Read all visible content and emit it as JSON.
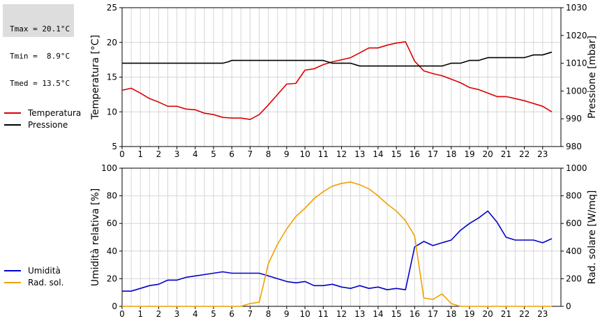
{
  "stats": {
    "tmax": "Tmax = 20.1°C",
    "tmin": "Tmin =  8.9°C",
    "tmed": "Tmed = 13.5°C"
  },
  "legend_top": [
    {
      "label": "Temperatura",
      "color": "#dd0000"
    },
    {
      "label": "Pressione",
      "color": "#000000"
    }
  ],
  "legend_bottom": [
    {
      "label": "Umidità",
      "color": "#0000cc"
    },
    {
      "label": "Rad. sol.",
      "color": "#f0a000"
    }
  ],
  "chart_data": [
    {
      "type": "line",
      "xlabel": "",
      "xlim": [
        0,
        24
      ],
      "x_ticks": [
        "0",
        "1",
        "2",
        "3",
        "4",
        "5",
        "6",
        "7",
        "8",
        "9",
        "10",
        "11",
        "12",
        "13",
        "14",
        "15",
        "16",
        "17",
        "18",
        "19",
        "20",
        "21",
        "22",
        "23"
      ],
      "ylabel": "Temperatura [°C]",
      "ylim": [
        5,
        25
      ],
      "y_ticks": [
        "5",
        "10",
        "15",
        "20",
        "25"
      ],
      "ylabel_right": "Pressione [mbar]",
      "ylim_right": [
        980,
        1030
      ],
      "y_ticks_right": [
        "980",
        "990",
        "1000",
        "1010",
        "1020",
        "1030"
      ],
      "grid": true,
      "series": [
        {
          "name": "Temperatura",
          "axis": "left",
          "color": "#dd0000",
          "x": [
            0,
            0.5,
            1,
            1.5,
            2,
            2.5,
            3,
            3.5,
            4,
            4.5,
            5,
            5.5,
            6,
            6.5,
            7,
            7.5,
            8,
            8.5,
            9,
            9.5,
            10,
            10.5,
            11,
            11.5,
            12,
            12.5,
            13,
            13.5,
            14,
            14.5,
            15,
            15.5,
            16,
            16.5,
            17,
            17.5,
            18,
            18.5,
            19,
            19.5,
            20,
            20.5,
            21,
            21.5,
            22,
            22.5,
            23,
            23.5
          ],
          "y": [
            13.1,
            13.4,
            12.7,
            11.9,
            11.4,
            10.8,
            10.8,
            10.4,
            10.3,
            9.8,
            9.6,
            9.2,
            9.1,
            9.1,
            8.9,
            9.6,
            11.0,
            12.5,
            14.0,
            14.1,
            16.0,
            16.2,
            16.8,
            17.2,
            17.5,
            17.8,
            18.5,
            19.2,
            19.2,
            19.6,
            19.9,
            20.1,
            17.3,
            15.9,
            15.5,
            15.2,
            14.7,
            14.2,
            13.5,
            13.2,
            12.7,
            12.2,
            12.2,
            11.9,
            11.6,
            11.2,
            10.8,
            10.0
          ]
        },
        {
          "name": "Pressione",
          "axis": "right",
          "color": "#000000",
          "x": [
            0,
            5.5,
            5.8,
            6,
            11,
            11.5,
            12.5,
            13,
            13.5,
            17.5,
            18,
            18.5,
            19,
            19.5,
            20,
            20.5,
            22,
            22.5,
            23,
            23.5
          ],
          "y": [
            1010,
            1010,
            1010.5,
            1011,
            1011,
            1010,
            1010,
            1009,
            1009,
            1009,
            1010,
            1010,
            1011,
            1011,
            1012,
            1012,
            1012,
            1013,
            1013,
            1014
          ]
        }
      ]
    },
    {
      "type": "line",
      "xlabel": "",
      "xlim": [
        0,
        24
      ],
      "x_ticks": [
        "0",
        "1",
        "2",
        "3",
        "4",
        "5",
        "6",
        "7",
        "8",
        "9",
        "10",
        "11",
        "12",
        "13",
        "14",
        "15",
        "16",
        "17",
        "18",
        "19",
        "20",
        "21",
        "22",
        "23"
      ],
      "ylabel": "Umidità relativa [%]",
      "ylim": [
        0,
        100
      ],
      "y_ticks": [
        "0",
        "20",
        "40",
        "60",
        "80",
        "100"
      ],
      "ylabel_right": "Rad. solare [W/mq]",
      "ylim_right": [
        0,
        1000
      ],
      "y_ticks_right": [
        "0",
        "200",
        "400",
        "600",
        "800",
        "1000"
      ],
      "grid": true,
      "series": [
        {
          "name": "Umidità",
          "axis": "left",
          "color": "#0000cc",
          "x": [
            0,
            0.5,
            1,
            1.5,
            2,
            2.5,
            3,
            3.5,
            4,
            4.5,
            5,
            5.5,
            6,
            6.5,
            7,
            7.5,
            8,
            8.5,
            9,
            9.5,
            10,
            10.5,
            11,
            11.5,
            12,
            12.5,
            13,
            13.5,
            14,
            14.5,
            15,
            15.5,
            16,
            16.5,
            17,
            17.5,
            18,
            18.5,
            19,
            19.5,
            20,
            20.5,
            21,
            21.5,
            22,
            22.5,
            23,
            23.5
          ],
          "y": [
            11,
            11,
            13,
            15,
            16,
            19,
            19,
            21,
            22,
            23,
            24,
            25,
            24,
            24,
            24,
            24,
            22,
            20,
            18,
            17,
            18,
            15,
            15,
            16,
            14,
            13,
            15,
            13,
            14,
            12,
            13,
            12,
            43,
            47,
            44,
            46,
            48,
            55,
            60,
            64,
            69,
            61,
            50,
            48,
            48,
            48,
            46,
            49
          ]
        },
        {
          "name": "Rad. sol.",
          "axis": "right",
          "color": "#f0a000",
          "x": [
            0,
            6.5,
            7,
            7.5,
            8,
            8.5,
            9,
            9.5,
            10,
            10.5,
            11,
            11.5,
            12,
            12.5,
            13,
            13.5,
            14,
            14.5,
            15,
            15.5,
            16,
            16.5,
            17,
            17.5,
            18,
            18.5,
            19,
            23.5
          ],
          "y": [
            0,
            0,
            20,
            30,
            310,
            450,
            560,
            650,
            710,
            780,
            830,
            870,
            890,
            900,
            880,
            850,
            800,
            740,
            690,
            620,
            510,
            60,
            50,
            90,
            20,
            0,
            0,
            0
          ]
        }
      ]
    }
  ]
}
